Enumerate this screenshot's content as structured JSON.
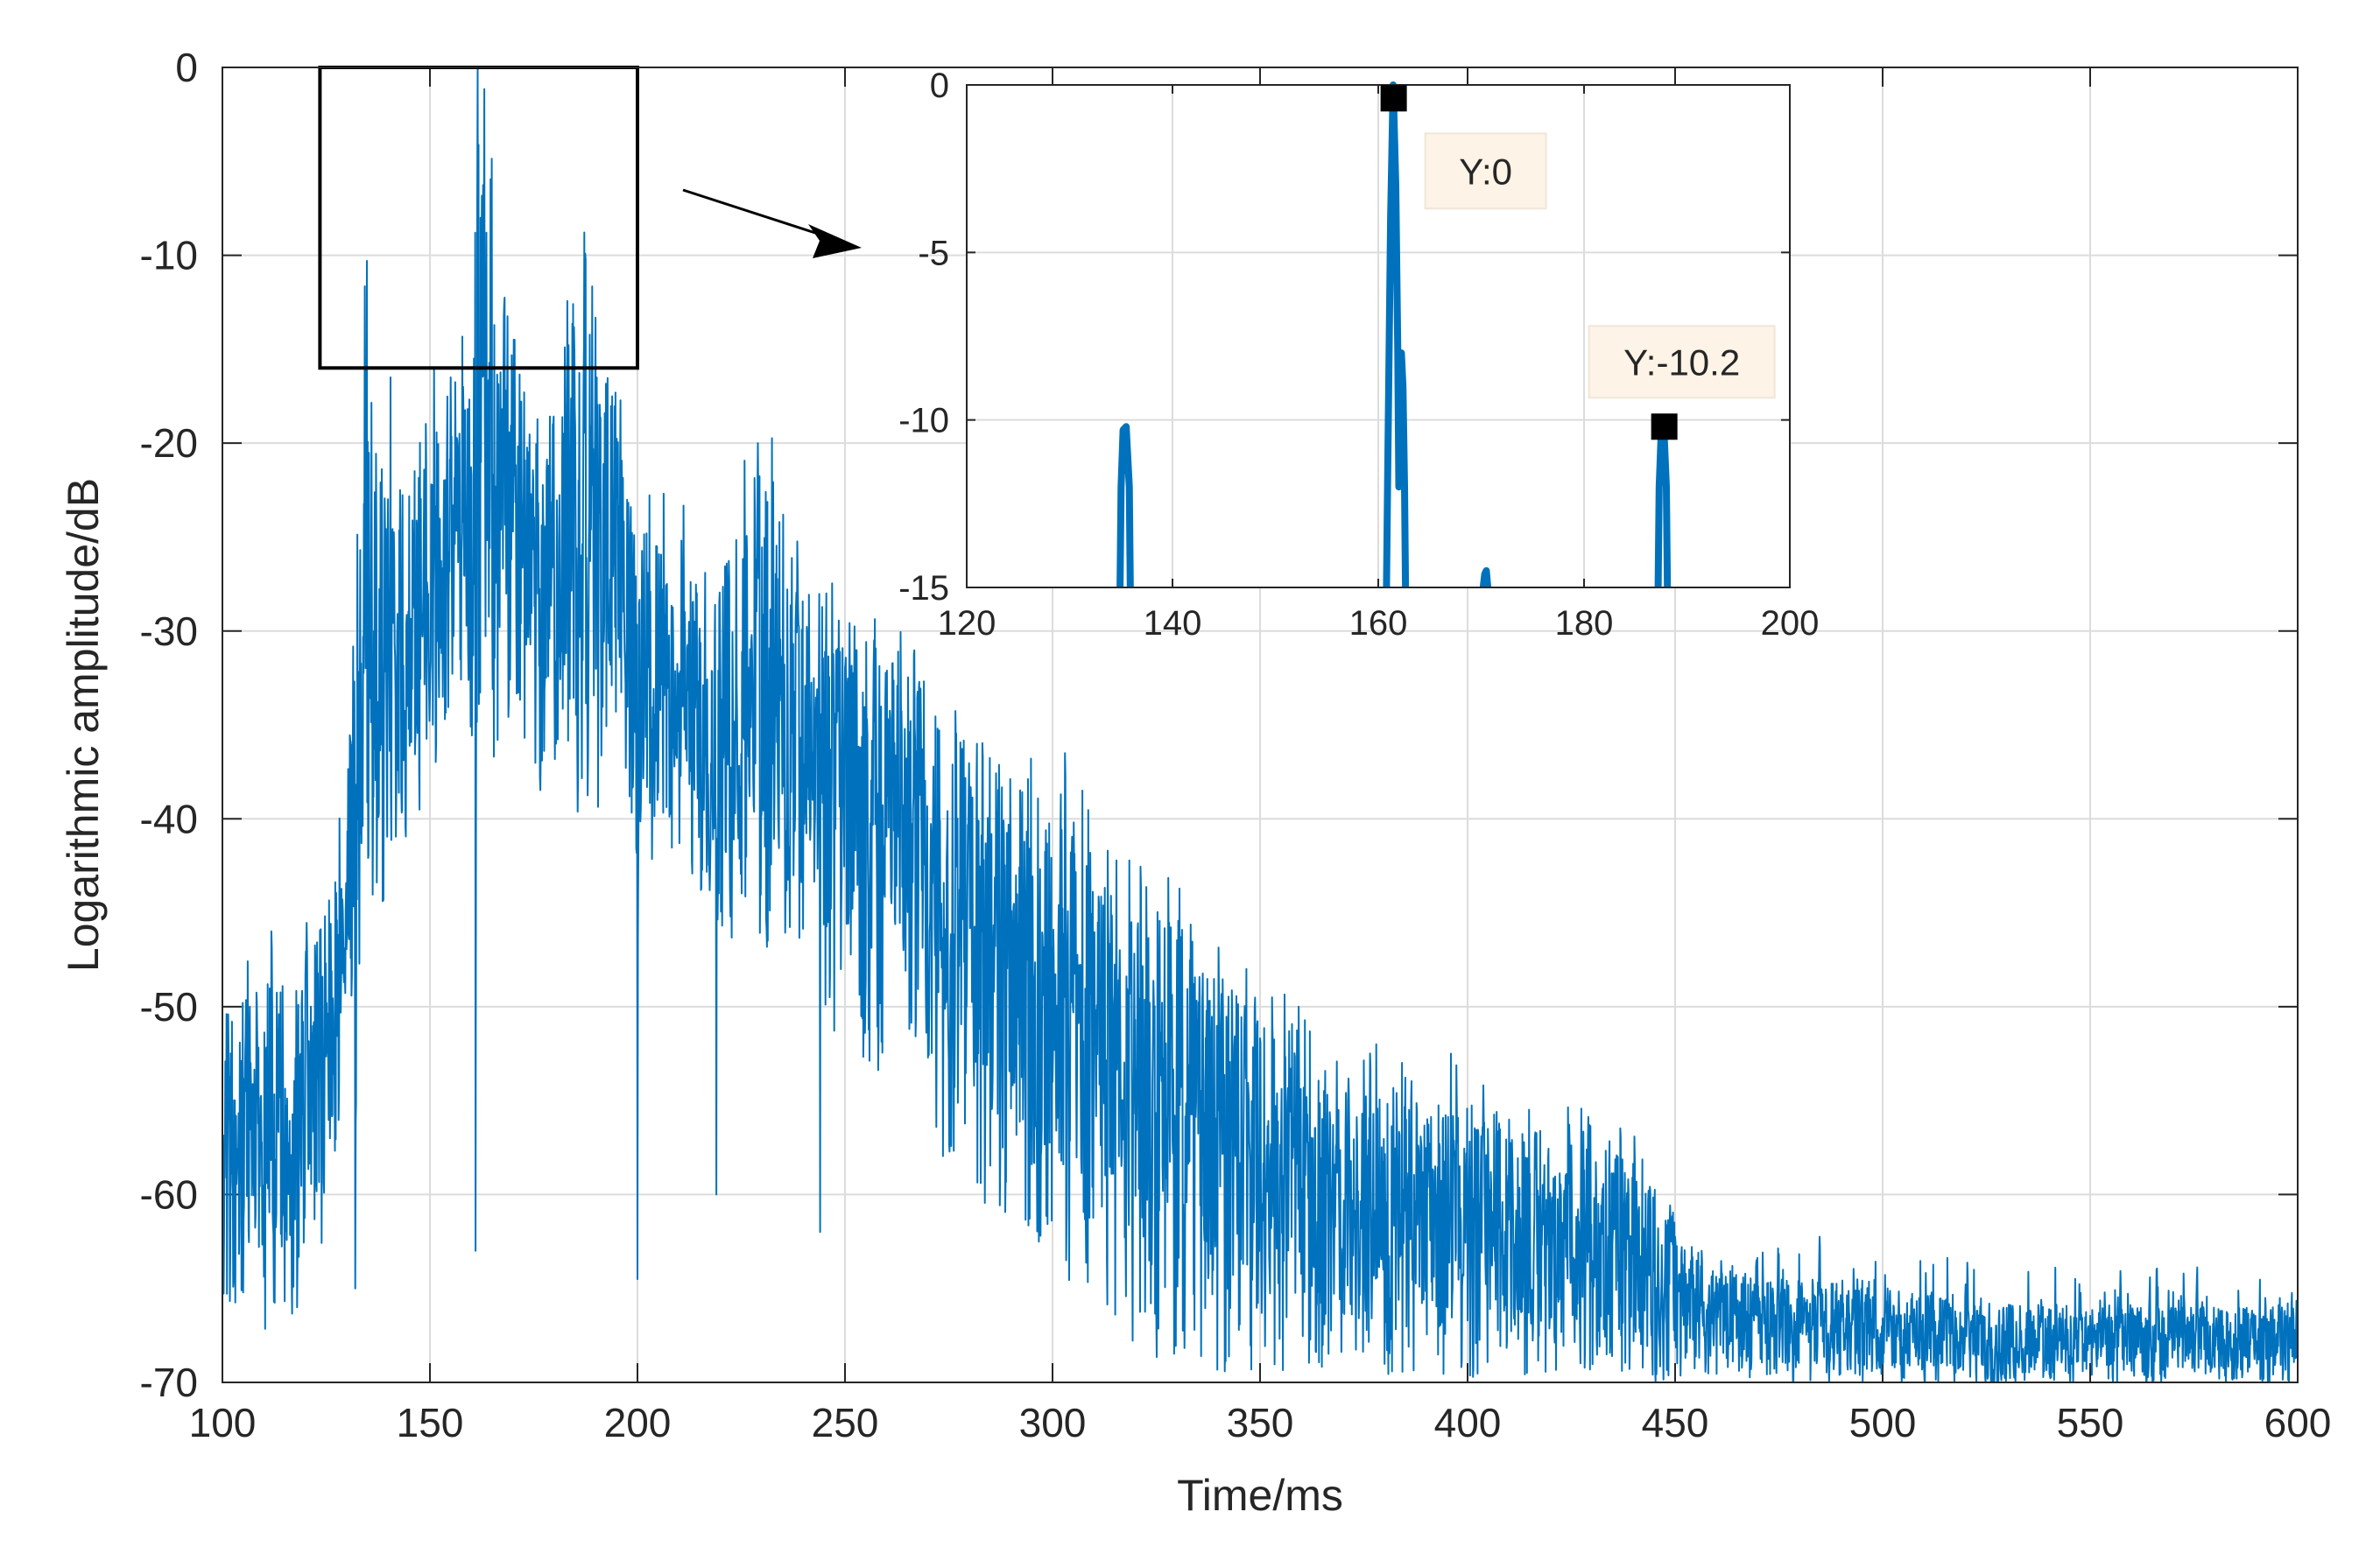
{
  "chart_data": [
    {
      "type": "line",
      "title": "",
      "xlabel": "Time/ms",
      "ylabel": "Logarithmic amplitude/dB",
      "xlim": [
        100,
        600
      ],
      "ylim": [
        -70,
        0
      ],
      "xticks": [
        "100",
        "150",
        "200",
        "250",
        "300",
        "350",
        "400",
        "450",
        "500",
        "550",
        "600"
      ],
      "yticks": [
        "0",
        "-10",
        "-20",
        "-30",
        "-40",
        "-50",
        "-60",
        "-70"
      ],
      "grid": true,
      "line_color": "#0072BD",
      "envelope": {
        "x": [
          100,
          110,
          120,
          125,
          130,
          134,
          140,
          150,
          155,
          160,
          162,
          170,
          180,
          188,
          200,
          220,
          230,
          240,
          260,
          280,
          300,
          320,
          340,
          350,
          370,
          400,
          420,
          440,
          460,
          500,
          550,
          600
        ],
        "upper": [
          -50,
          -48,
          -47,
          -45,
          -40,
          -13,
          -24,
          -20,
          -16,
          -16,
          0,
          -15,
          -17,
          -10,
          -24,
          -26,
          -20,
          -27,
          -31,
          -36,
          -39,
          -42,
          -48,
          -50,
          -54,
          -55,
          -57,
          -58,
          -64,
          -65,
          -66,
          -66
        ],
        "lower": [
          -66,
          -68,
          -66,
          -64,
          -56,
          -48,
          -45,
          -38,
          -35,
          -37,
          -37,
          -37,
          -40,
          -40,
          -42,
          -46,
          -48,
          -50,
          -54,
          -60,
          -64,
          -68,
          -70,
          -70,
          -70,
          -70,
          -70,
          -70,
          -70,
          -70,
          -70,
          -70
        ]
      },
      "peaks": [
        {
          "x": 134.8,
          "y": -10.3
        },
        {
          "x": 161.5,
          "y": 0
        },
        {
          "x": 162.2,
          "y": -8.0
        },
        {
          "x": 170.4,
          "y": -14.5
        },
        {
          "x": 187.5,
          "y": -10.2
        },
        {
          "x": 140.5,
          "y": -16.5
        },
        {
          "x": 151.0,
          "y": -16.0
        },
        {
          "x": 155.0,
          "y": -16.5
        },
        {
          "x": 158.0,
          "y": -17.0
        },
        {
          "x": 229.0,
          "y": -20.0
        },
        {
          "x": 257.0,
          "y": -30.5
        },
        {
          "x": 303.0,
          "y": -36.5
        },
        {
          "x": 319.0,
          "y": -45.5
        },
        {
          "x": 378.0,
          "y": -52.0
        },
        {
          "x": 396.0,
          "y": -52.5
        },
        {
          "x": 403.0,
          "y": -61.0
        },
        {
          "x": 435.0,
          "y": -62.0
        },
        {
          "x": 449.0,
          "y": -62.5
        },
        {
          "x": 476.0,
          "y": -64.0
        },
        {
          "x": 522.0,
          "y": -64.0
        },
        {
          "x": 566.0,
          "y": -64.0
        }
      ],
      "dips": [
        {
          "x": 161.0,
          "y": -63.0
        },
        {
          "x": 200.0,
          "y": -64.5
        },
        {
          "x": 118.0,
          "y": -66.0
        },
        {
          "x": 132.0,
          "y": -65.0
        },
        {
          "x": 219.0,
          "y": -60.0
        },
        {
          "x": 244.0,
          "y": -62.0
        }
      ],
      "zoom_box": {
        "x": [
          123.5,
          200
        ],
        "y": [
          -16,
          0
        ]
      }
    },
    {
      "type": "line",
      "title": "",
      "xlabel": "",
      "ylabel": "",
      "xlim": [
        120,
        200
      ],
      "ylim": [
        -15,
        0
      ],
      "xticks": [
        "120",
        "140",
        "160",
        "180",
        "200"
      ],
      "yticks": [
        "0",
        "-5",
        "-10",
        "-15"
      ],
      "grid": true,
      "line_color": "#0072BD",
      "segments": [
        {
          "x": [
            134.9,
            135.0,
            135.2,
            135.5,
            135.8,
            135.9
          ],
          "y": [
            -15,
            -12,
            -10.3,
            -10.2,
            -12,
            -15
          ]
        },
        {
          "x": [
            160.8,
            160.9,
            161.2,
            161.45,
            161.7,
            161.9,
            162.0,
            162.1,
            162.25,
            162.4,
            162.55,
            162.65
          ],
          "y": [
            -15,
            -12,
            -4,
            0,
            -3,
            -8,
            -12,
            -11,
            -8.0,
            -9,
            -12,
            -15
          ]
        },
        {
          "x": [
            170.2,
            170.35,
            170.5,
            170.65
          ],
          "y": [
            -15,
            -14.6,
            -14.5,
            -15
          ]
        },
        {
          "x": [
            187.2,
            187.3,
            187.5,
            187.75,
            188.0,
            188.1
          ],
          "y": [
            -15,
            -12,
            -10.4,
            -10.2,
            -12,
            -15
          ]
        }
      ],
      "markers": [
        {
          "x": 161.5,
          "y": -0.4,
          "label": "Y:0"
        },
        {
          "x": 187.8,
          "y": -10.2,
          "label": "Y:-10.2"
        }
      ]
    }
  ]
}
